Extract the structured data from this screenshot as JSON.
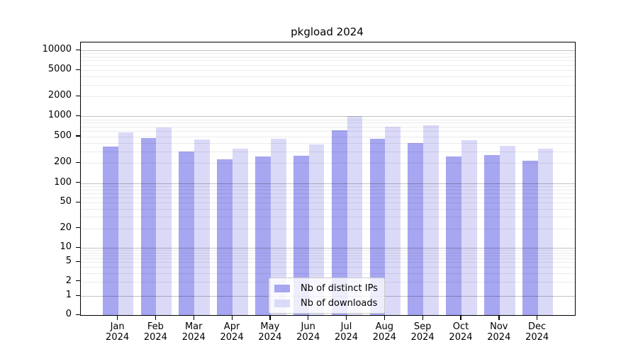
{
  "title": "pkgload 2024",
  "chart_data": {
    "type": "bar",
    "title": "pkgload 2024",
    "yscale": "symlog",
    "ylim": [
      0,
      13000
    ],
    "grid": true,
    "legend_position": "lower center",
    "categories": [
      {
        "month": "Jan",
        "year": "2024"
      },
      {
        "month": "Feb",
        "year": "2024"
      },
      {
        "month": "Mar",
        "year": "2024"
      },
      {
        "month": "Apr",
        "year": "2024"
      },
      {
        "month": "May",
        "year": "2024"
      },
      {
        "month": "Jun",
        "year": "2024"
      },
      {
        "month": "Jul",
        "year": "2024"
      },
      {
        "month": "Aug",
        "year": "2024"
      },
      {
        "month": "Sep",
        "year": "2024"
      },
      {
        "month": "Oct",
        "year": "2024"
      },
      {
        "month": "Nov",
        "year": "2024"
      },
      {
        "month": "Dec",
        "year": "2024"
      }
    ],
    "y_ticks": [
      10000,
      5000,
      2000,
      1000,
      500,
      200,
      100,
      50,
      20,
      10,
      5,
      2,
      1,
      0
    ],
    "series": [
      {
        "name": "Nb of distinct IPs",
        "color": "#a6a6f1",
        "values": [
          350,
          470,
          300,
          228,
          248,
          258,
          615,
          465,
          395,
          250,
          265,
          215
        ]
      },
      {
        "name": "Nb of downloads",
        "color": "#dadaf8",
        "values": [
          570,
          675,
          455,
          330,
          465,
          380,
          1010,
          700,
          730,
          445,
          365,
          330
        ]
      }
    ]
  }
}
